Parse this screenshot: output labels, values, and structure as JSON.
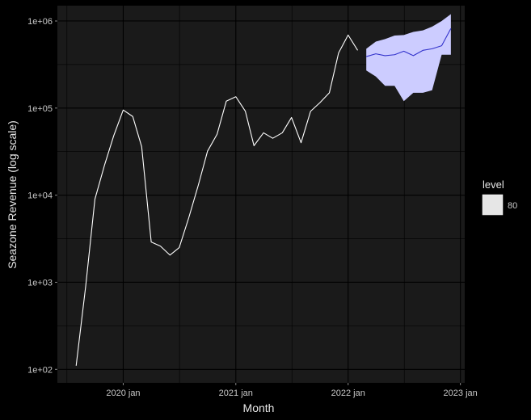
{
  "chart_data": {
    "type": "line",
    "xlabel": "Month",
    "ylabel": "Seazone Revenue (log scale)",
    "y_scale": "log10",
    "ylim": [
      70,
      1500000
    ],
    "xlim": [
      "2019-06-01",
      "2023-01-15"
    ],
    "grid": true,
    "y_ticks": [
      {
        "value": 100,
        "label": "1e+02"
      },
      {
        "value": 1000,
        "label": "1e+03"
      },
      {
        "value": 10000,
        "label": "1e+04"
      },
      {
        "value": 100000,
        "label": "1e+05"
      },
      {
        "value": 1000000,
        "label": "1e+06"
      }
    ],
    "x_ticks": [
      {
        "value": "2020-01-01",
        "label": "2020 jan"
      },
      {
        "value": "2021-01-01",
        "label": "2021 jan"
      },
      {
        "value": "2022-01-01",
        "label": "2022 jan"
      },
      {
        "value": "2023-01-01",
        "label": "2023 jan"
      }
    ],
    "series": [
      {
        "role": "history",
        "color": "#ffffff",
        "x": [
          "2019-08-01",
          "2019-09-01",
          "2019-10-01",
          "2019-11-01",
          "2019-12-01",
          "2020-01-01",
          "2020-02-01",
          "2020-03-01",
          "2020-04-01",
          "2020-05-01",
          "2020-06-01",
          "2020-07-01",
          "2020-08-01",
          "2020-09-01",
          "2020-10-01",
          "2020-11-01",
          "2020-12-01",
          "2021-01-01",
          "2021-02-01",
          "2021-03-01",
          "2021-04-01",
          "2021-05-01",
          "2021-06-01",
          "2021-07-01",
          "2021-08-01",
          "2021-09-01",
          "2021-10-01",
          "2021-11-01",
          "2021-12-01",
          "2022-01-01",
          "2022-02-01"
        ],
        "y": [
          110,
          900,
          9000,
          22000,
          48000,
          95000,
          80000,
          36000,
          2900,
          2600,
          2050,
          2500,
          5500,
          13000,
          32000,
          50000,
          120000,
          135000,
          92000,
          37000,
          52000,
          45000,
          52000,
          78000,
          40000,
          92000,
          115000,
          150000,
          430000,
          690000,
          460000
        ]
      },
      {
        "role": "forecast",
        "color": "#3333cc",
        "x": [
          "2022-03-01",
          "2022-04-01",
          "2022-05-01",
          "2022-06-01",
          "2022-07-01",
          "2022-08-01",
          "2022-09-01",
          "2022-10-01",
          "2022-11-01",
          "2022-12-01"
        ],
        "y": [
          390000,
          420000,
          400000,
          410000,
          450000,
          400000,
          460000,
          480000,
          520000,
          820000
        ],
        "lower": [
          270000,
          230000,
          180000,
          180000,
          120000,
          150000,
          150000,
          160000,
          410000,
          410000
        ],
        "upper": [
          480000,
          580000,
          620000,
          680000,
          690000,
          750000,
          780000,
          860000,
          1000000,
          1200000
        ]
      }
    ],
    "legend": {
      "title": "level",
      "placement": "right",
      "entries": [
        {
          "label": "80",
          "color": "#e6e6e6"
        }
      ]
    },
    "colors": {
      "page_background": "#000000",
      "panel_background": "#1a1a1a",
      "gridline": "#000000",
      "interval_fill": "#ccccff"
    }
  }
}
